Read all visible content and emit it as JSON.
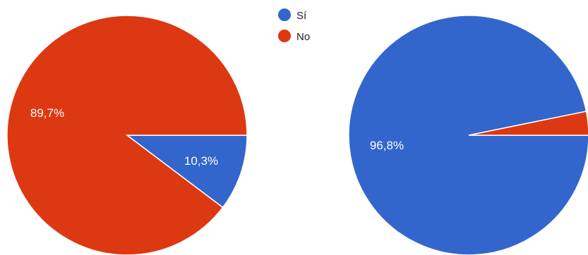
{
  "chart_data": [
    {
      "type": "pie",
      "categories": [
        "Sí",
        "No"
      ],
      "values": [
        10.3,
        89.7
      ],
      "labels": [
        "10,3%",
        "89,7%"
      ],
      "colors": [
        "#3366cc",
        "#dc3912"
      ]
    },
    {
      "type": "pie",
      "categories": [
        "Sí",
        "No"
      ],
      "values": [
        96.8,
        3.2
      ],
      "labels": [
        "96,8%",
        ""
      ],
      "colors": [
        "#3366cc",
        "#dc3912"
      ]
    }
  ],
  "legend": {
    "placement": "top-center",
    "items": [
      {
        "label": "Sí",
        "color": "#3366cc"
      },
      {
        "label": "No",
        "color": "#dc3912"
      }
    ]
  }
}
